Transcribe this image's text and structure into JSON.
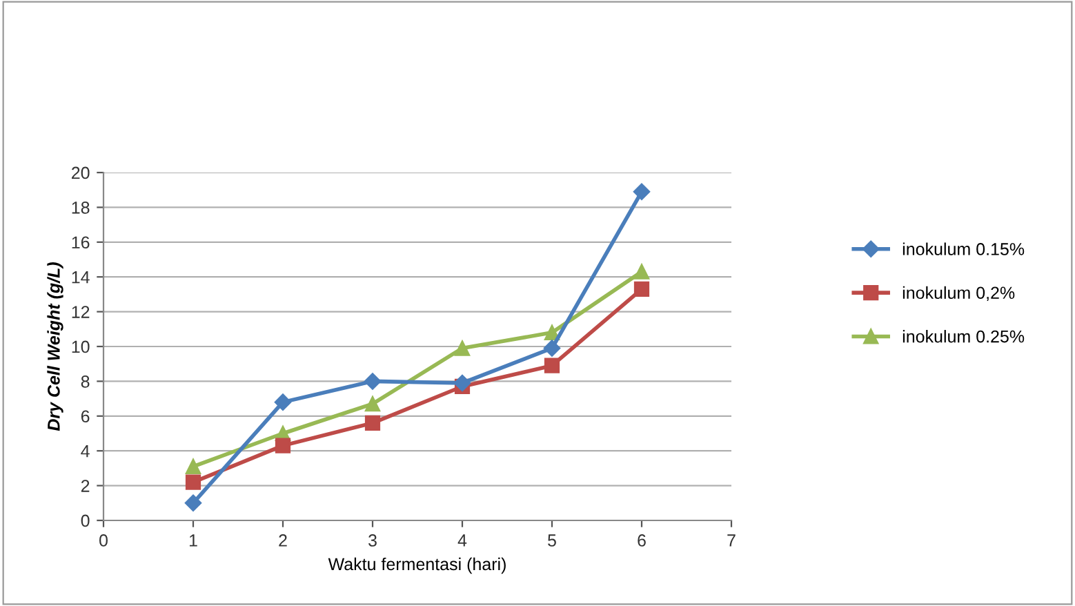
{
  "chart_data": {
    "type": "line",
    "xlabel": "Waktu fermentasi (hari)",
    "ylabel": "Dry Cell Weight (g/L)",
    "x": [
      1,
      2,
      3,
      4,
      5,
      6
    ],
    "series": [
      {
        "name": "inokulum 0.15%",
        "color": "#4a7ebb",
        "marker": "diamond",
        "values": [
          1.0,
          6.8,
          8.0,
          7.9,
          9.9,
          18.9
        ]
      },
      {
        "name": "inokulum 0,2%",
        "color": "#be4b48",
        "marker": "square",
        "values": [
          2.2,
          4.3,
          5.6,
          7.7,
          8.9,
          13.3
        ]
      },
      {
        "name": "inokulum 0.25%",
        "color": "#98b954",
        "marker": "triangle",
        "values": [
          3.1,
          5.0,
          6.7,
          9.9,
          10.8,
          14.3
        ]
      }
    ],
    "xlim": [
      0,
      7
    ],
    "xticks": [
      0,
      1,
      2,
      3,
      4,
      5,
      6,
      7
    ],
    "ylim": [
      0,
      20
    ],
    "yticks": [
      0,
      2,
      4,
      6,
      8,
      10,
      12,
      14,
      16,
      18,
      20
    ],
    "grid": "y",
    "legend": "right",
    "line_style": "solid"
  }
}
